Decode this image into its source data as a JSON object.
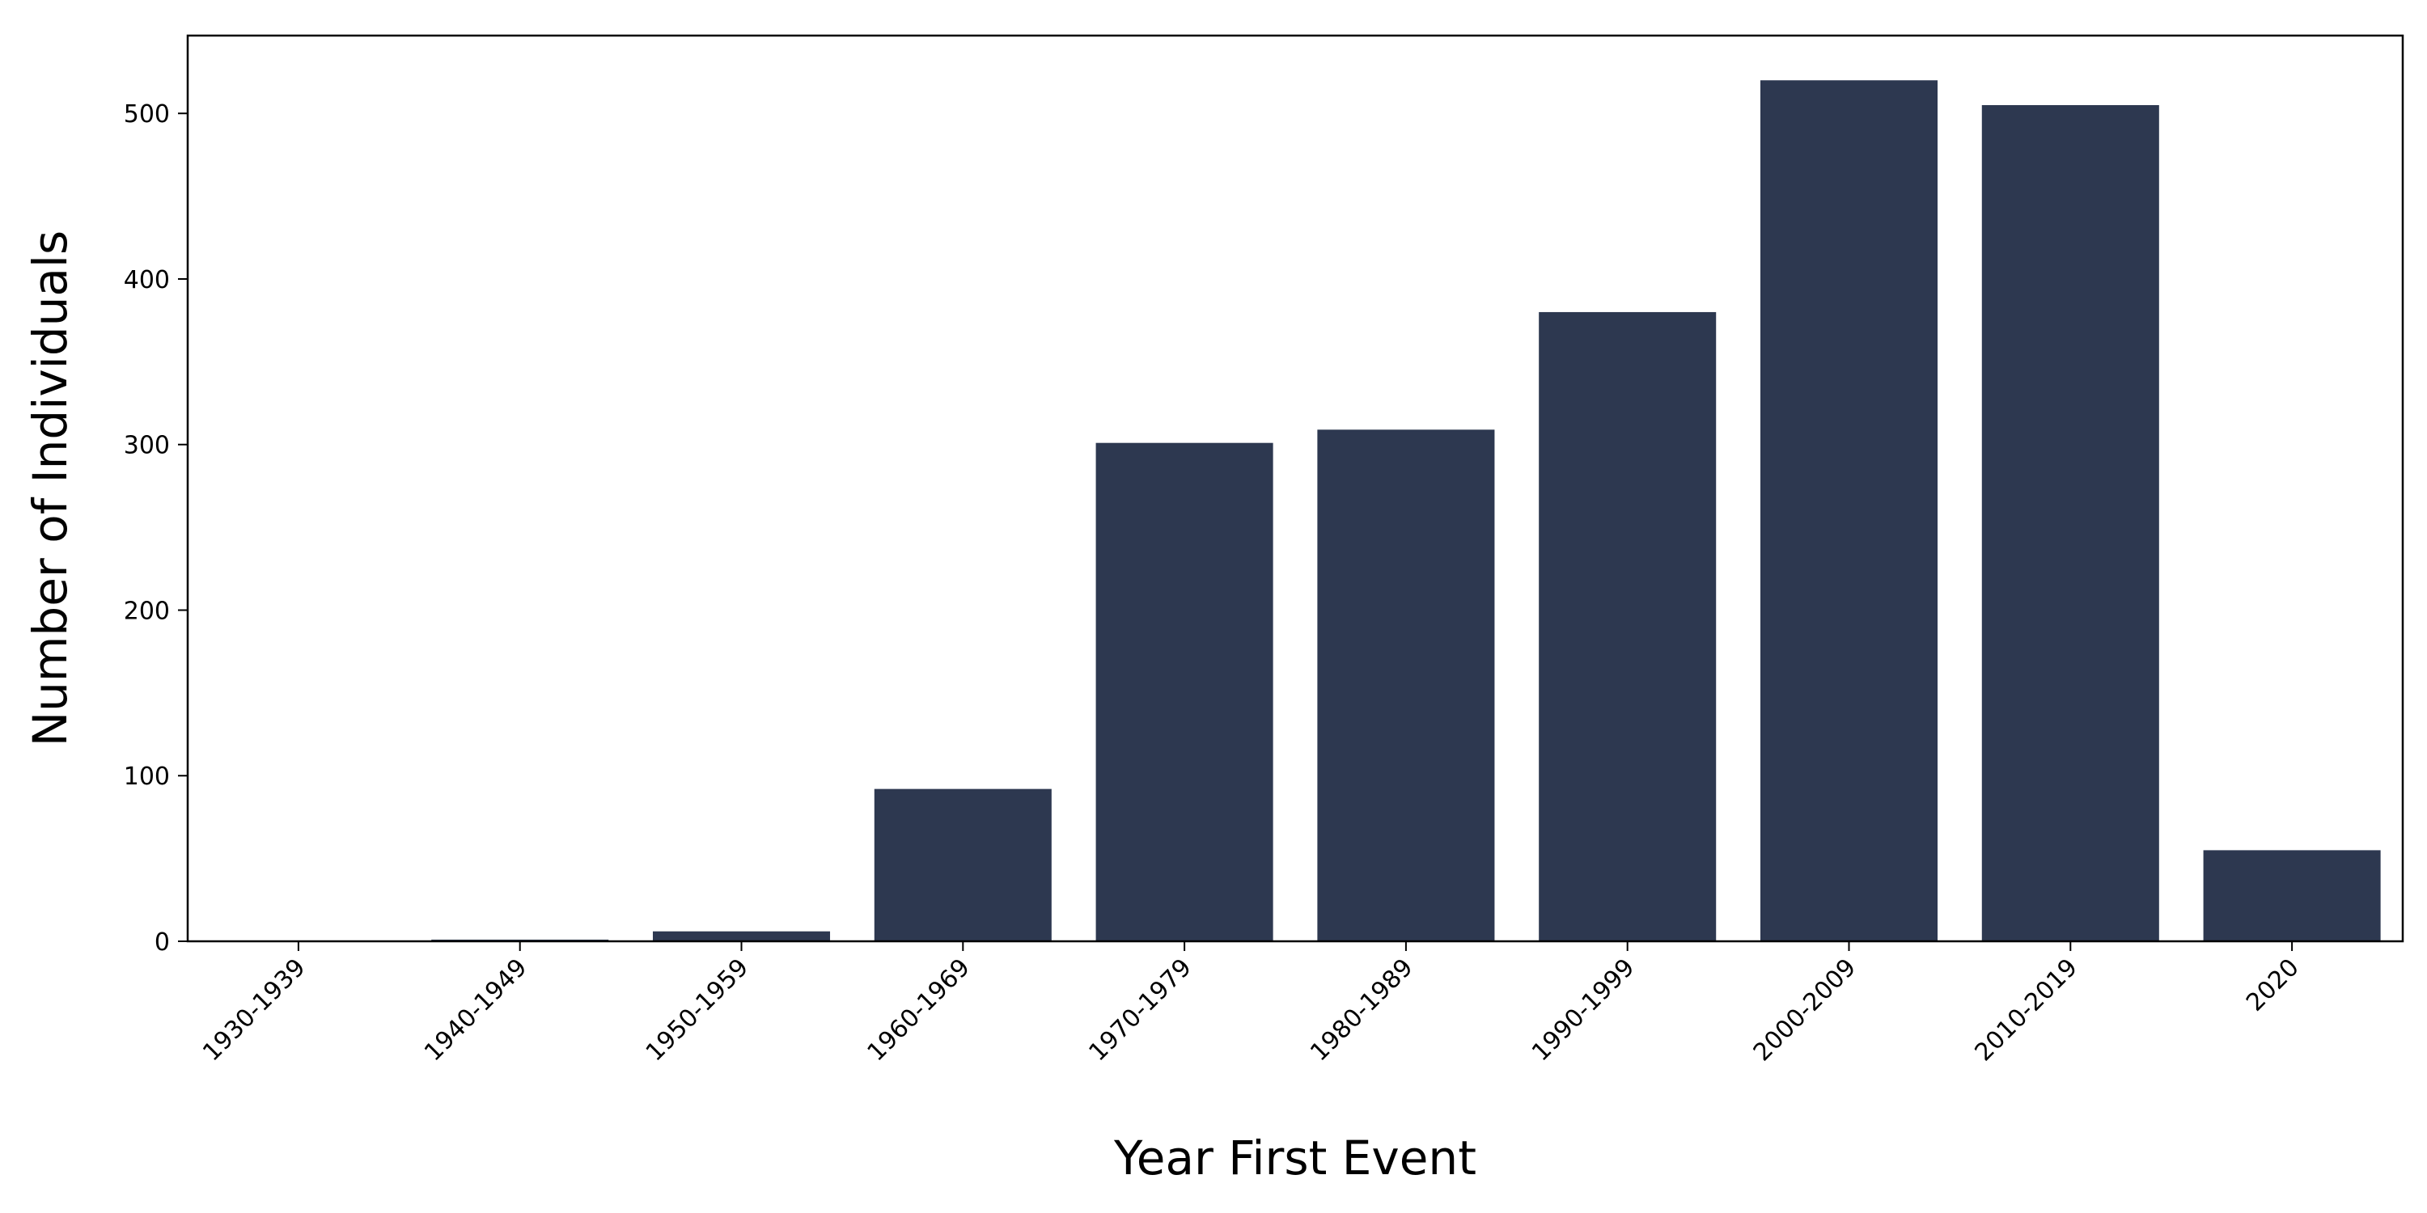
{
  "chart_data": {
    "type": "bar",
    "title": "",
    "xlabel": "Year First Event",
    "ylabel": "Number of Individuals",
    "categories": [
      "1930-1939",
      "1940-1949",
      "1950-1959",
      "1960-1969",
      "1970-1979",
      "1980-1989",
      "1990-1999",
      "2000-2009",
      "2010-2019",
      "2020"
    ],
    "values": [
      0,
      1,
      6,
      92,
      301,
      309,
      380,
      520,
      505,
      55
    ],
    "ylim": [
      0,
      547
    ],
    "yticks": [
      0,
      100,
      200,
      300,
      400,
      500
    ],
    "grid": false,
    "legend": "none",
    "bar_color": "#2d3850"
  }
}
